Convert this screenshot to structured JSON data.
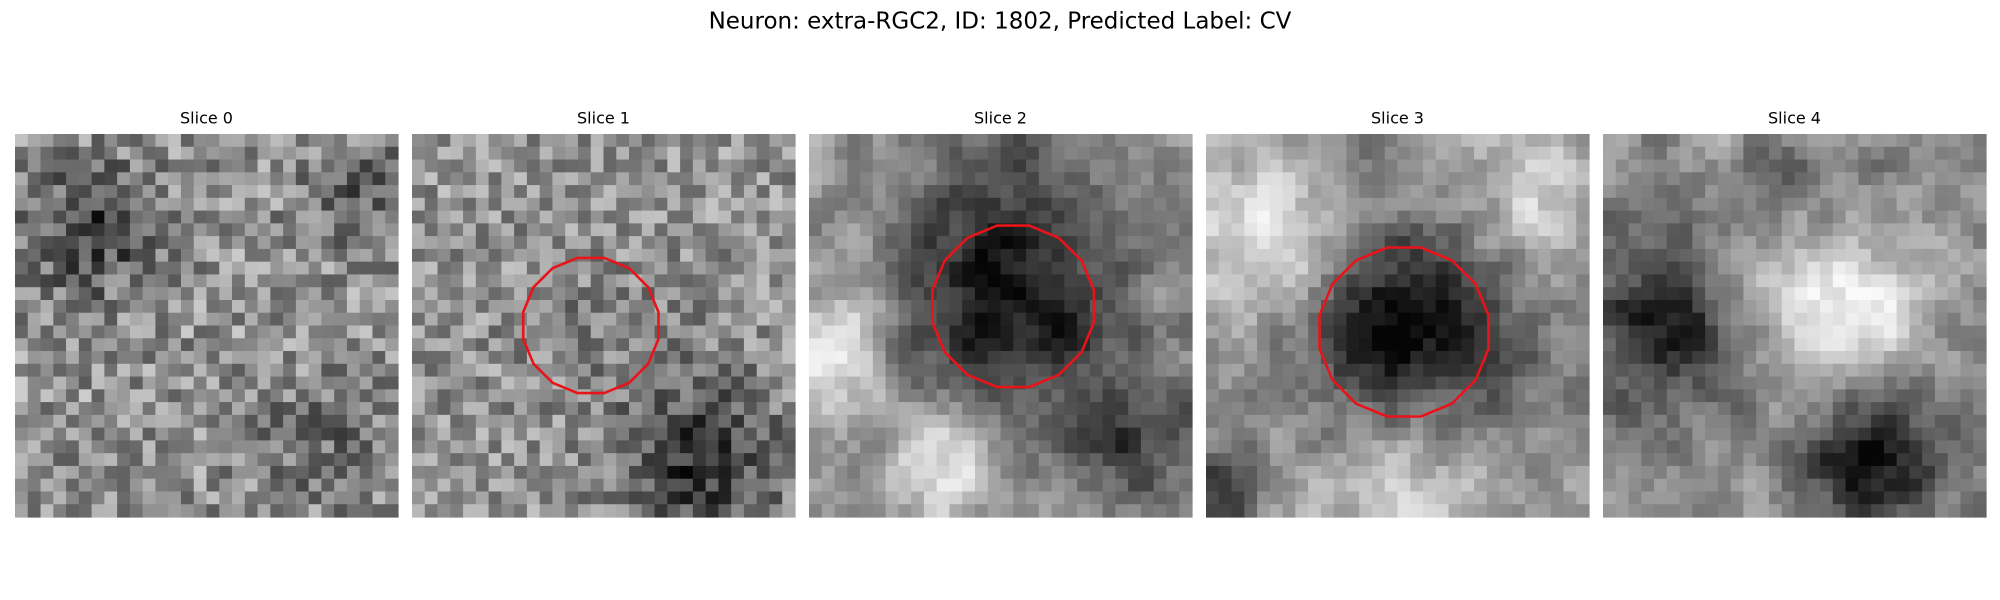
{
  "figure": {
    "title": "Neuron: extra-RGC2, ID: 1802, Predicted Label: CV",
    "panels": [
      {
        "title": "Slice 0"
      },
      {
        "title": "Slice 1"
      },
      {
        "title": "Slice 2"
      },
      {
        "title": "Slice 3"
      },
      {
        "title": "Slice 4"
      }
    ]
  }
}
